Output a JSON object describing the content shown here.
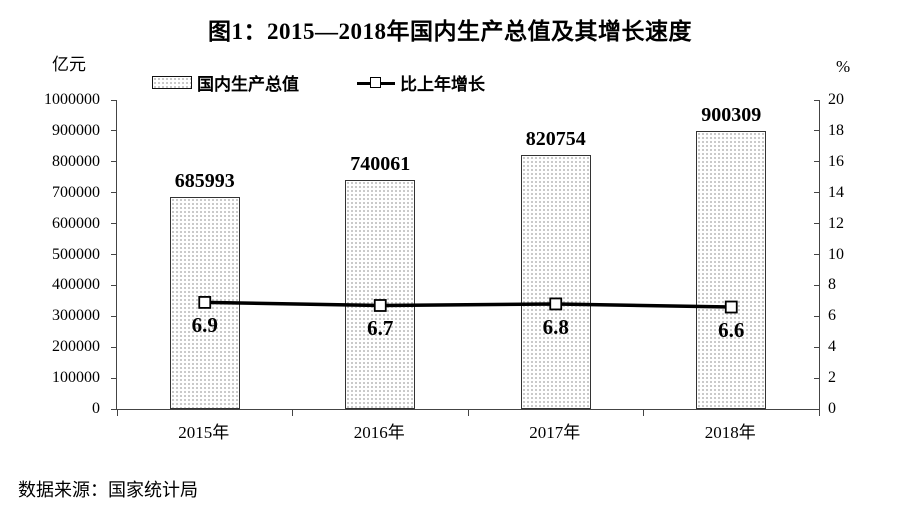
{
  "title": "图1：2015—2018年国内生产总值及其增长速度",
  "source": "数据来源：国家统计局",
  "chart_data": {
    "type": "bar",
    "combo": "bar+line",
    "categories": [
      "2015年",
      "2016年",
      "2017年",
      "2018年"
    ],
    "series": [
      {
        "name": "国内生产总值",
        "type": "bar",
        "axis": "left",
        "values": [
          685993,
          740061,
          820754,
          900309
        ]
      },
      {
        "name": "比上年增长",
        "type": "line",
        "axis": "right",
        "values": [
          6.9,
          6.7,
          6.8,
          6.6
        ]
      }
    ],
    "left_axis": {
      "unit": "亿元",
      "min": 0,
      "max": 1000000,
      "step": 100000,
      "ticks": [
        0,
        100000,
        200000,
        300000,
        400000,
        500000,
        600000,
        700000,
        800000,
        900000,
        1000000
      ]
    },
    "right_axis": {
      "unit": "%",
      "min": 0,
      "max": 20,
      "step": 2,
      "ticks": [
        0,
        2,
        4,
        6,
        8,
        10,
        12,
        14,
        16,
        18,
        20
      ]
    },
    "grid": false,
    "legend_position": "top",
    "colors": {
      "bar_fill": "#ffffff",
      "bar_dot": "#b9b9b9",
      "bar_border": "#333333",
      "line": "#000000",
      "marker_fill": "#ffffff",
      "axis": "#444444",
      "text": "#000000"
    }
  }
}
